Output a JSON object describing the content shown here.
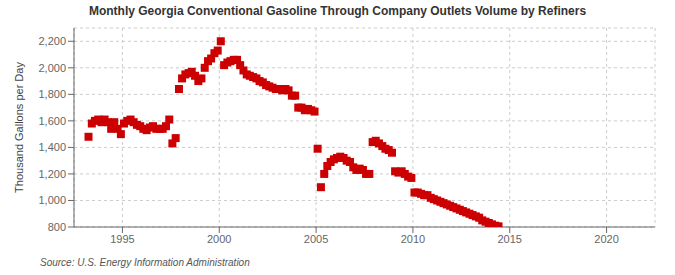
{
  "chart_data": {
    "type": "scatter",
    "title": "Monthly Georgia Conventional Gasoline Through Company Outlets Volume by Refiners",
    "ylabel": "Thousand Gallons per Day",
    "annotations": [
      "Source: U.S. Energy Information Administration"
    ],
    "color": "#cc0000",
    "marker": "square",
    "grid": true,
    "xlim": [
      1992.5,
      2022.5
    ],
    "xticks": [
      1995,
      2000,
      2005,
      2010,
      2015,
      2020
    ],
    "ylim": [
      800,
      2300
    ],
    "yticks": [
      800,
      {
        "value": 1000,
        "label": "1,000"
      },
      {
        "value": 1200,
        "label": "1,200"
      },
      {
        "value": 1400,
        "label": "1,400"
      },
      {
        "value": 1600,
        "label": "1,600"
      },
      {
        "value": 1800,
        "label": "1,800"
      },
      {
        "value": 2000,
        "label": "2,000"
      },
      {
        "value": 2200,
        "label": "2,200"
      }
    ],
    "x": [
      1993.25,
      1993.42,
      1993.58,
      1993.75,
      1993.92,
      1994.08,
      1994.25,
      1994.42,
      1994.58,
      1994.75,
      1994.92,
      1995.08,
      1995.25,
      1995.42,
      1995.58,
      1995.75,
      1995.92,
      1996.08,
      1996.25,
      1996.42,
      1996.58,
      1996.75,
      1996.92,
      1997.08,
      1997.25,
      1997.42,
      1997.58,
      1997.75,
      1997.92,
      1998.08,
      1998.25,
      1998.42,
      1998.58,
      1998.75,
      1998.92,
      1999.08,
      1999.25,
      1999.42,
      1999.58,
      1999.75,
      1999.92,
      2000.08,
      2000.25,
      2000.42,
      2000.58,
      2000.75,
      2000.92,
      2001.08,
      2001.25,
      2001.42,
      2001.58,
      2001.75,
      2001.92,
      2002.08,
      2002.25,
      2002.42,
      2002.58,
      2002.75,
      2002.92,
      2003.08,
      2003.25,
      2003.42,
      2003.58,
      2003.75,
      2003.92,
      2004.08,
      2004.25,
      2004.42,
      2004.58,
      2004.75,
      2004.92,
      2005.08,
      2005.25,
      2005.42,
      2005.58,
      2005.75,
      2005.92,
      2006.08,
      2006.25,
      2006.42,
      2006.58,
      2006.75,
      2006.92,
      2007.08,
      2007.25,
      2007.42,
      2007.58,
      2007.75,
      2007.92,
      2008.08,
      2008.25,
      2008.42,
      2008.58,
      2008.75,
      2008.92,
      2009.08,
      2009.25,
      2009.42,
      2009.58,
      2009.75,
      2009.92,
      2010.08,
      2010.25,
      2010.42,
      2010.58,
      2010.75,
      2010.92,
      2011.08,
      2011.25,
      2011.42,
      2011.58,
      2011.75,
      2011.92,
      2012.08,
      2012.25,
      2012.42,
      2012.58,
      2012.75,
      2012.92,
      2013.08,
      2013.25,
      2013.42,
      2013.58,
      2013.75,
      2013.92,
      2014.08,
      2014.25,
      2014.42
    ],
    "values": [
      1480,
      1580,
      1600,
      1610,
      1590,
      1610,
      1590,
      1540,
      1590,
      1540,
      1500,
      1580,
      1600,
      1610,
      1590,
      1570,
      1560,
      1540,
      1530,
      1550,
      1560,
      1540,
      1540,
      1540,
      1560,
      1610,
      1430,
      1470,
      1840,
      1920,
      1950,
      1960,
      1970,
      1940,
      1900,
      1920,
      2000,
      2050,
      2070,
      2110,
      2130,
      2200,
      2020,
      2040,
      2050,
      2060,
      2060,
      2020,
      1980,
      1950,
      1940,
      1930,
      1920,
      1900,
      1890,
      1870,
      1860,
      1850,
      1840,
      1840,
      1830,
      1840,
      1830,
      1790,
      1790,
      1700,
      1700,
      1680,
      1690,
      1680,
      1670,
      1390,
      1100,
      1200,
      1260,
      1290,
      1310,
      1320,
      1330,
      1320,
      1300,
      1290,
      1250,
      1230,
      1240,
      1230,
      1200,
      1200,
      1440,
      1450,
      1430,
      1410,
      1390,
      1380,
      1360,
      1220,
      1210,
      1220,
      1200,
      1180,
      1170,
      1060,
      1060,
      1050,
      1040,
      1040,
      1020,
      1010,
      1000,
      990,
      980,
      970,
      960,
      950,
      940,
      930,
      920,
      910,
      900,
      890,
      880,
      870,
      850,
      840,
      830,
      820,
      810,
      805
    ]
  }
}
